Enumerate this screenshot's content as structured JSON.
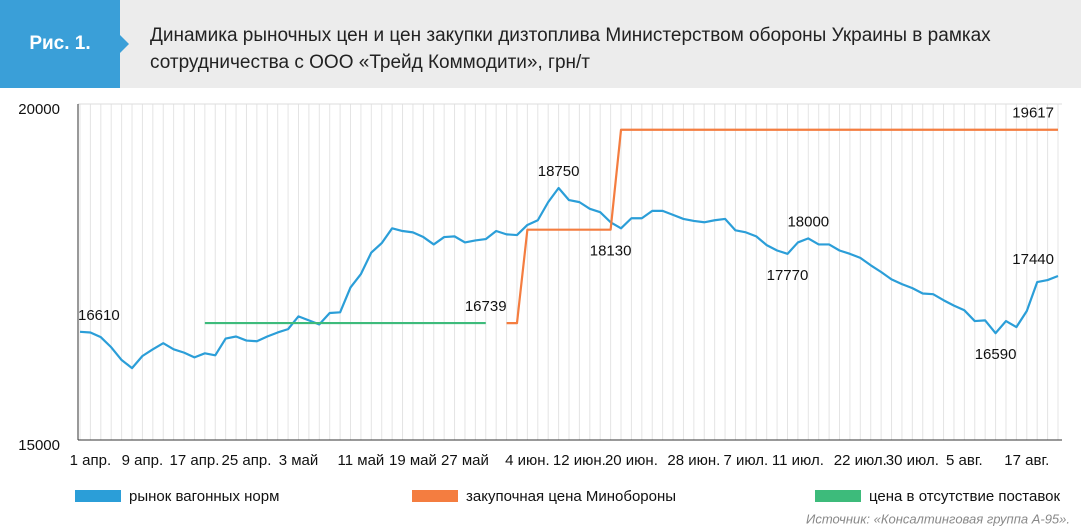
{
  "chart_data": {
    "type": "line",
    "figure_label": "Рис. 1.",
    "title": "Динамика рыночных цен и цен закупки дизтоплива Министерством обороны Украины в рамках сотрудничества с ООО «Трейд Коммодити», грн/т",
    "source": "Источник: «Консалтинговая группа А-95».",
    "ylim": [
      15000,
      20000
    ],
    "yticks": [
      15000,
      20000
    ],
    "grid": true,
    "categories": [
      null,
      "1 апр.",
      null,
      null,
      null,
      null,
      "9 апр.",
      null,
      null,
      null,
      null,
      "17 апр.",
      null,
      null,
      null,
      null,
      "25 апр.",
      null,
      null,
      null,
      null,
      "3 май",
      null,
      null,
      null,
      null,
      null,
      "11 май",
      null,
      null,
      null,
      null,
      "19 май",
      null,
      null,
      null,
      null,
      "27 май",
      null,
      null,
      null,
      null,
      null,
      "4 июн.",
      null,
      null,
      null,
      null,
      "12 июн.",
      null,
      null,
      null,
      null,
      "20 июн.",
      null,
      null,
      null,
      null,
      null,
      "28 июн.",
      null,
      null,
      null,
      null,
      "7 июл.",
      null,
      null,
      null,
      null,
      "11 июл.",
      null,
      null,
      null,
      null,
      null,
      "22 июл.",
      null,
      null,
      null,
      null,
      "30 июл.",
      null,
      null,
      null,
      null,
      "5 авг.",
      null,
      null,
      null,
      null,
      null,
      "17 авг.",
      null,
      null,
      null
    ],
    "series": [
      {
        "name": "рынок вагонных норм",
        "color": "#2b9ed8",
        "values": [
          16610,
          16600,
          16530,
          16380,
          16190,
          16070,
          16250,
          16350,
          16440,
          16350,
          16300,
          16230,
          16290,
          16260,
          16510,
          16540,
          16480,
          16470,
          16540,
          16600,
          16650,
          16840,
          16780,
          16720,
          16890,
          16900,
          17270,
          17470,
          17790,
          17930,
          18150,
          18110,
          18090,
          18020,
          17910,
          18020,
          18030,
          17940,
          17970,
          17990,
          18110,
          18060,
          18050,
          18200,
          18270,
          18540,
          18750,
          18570,
          18540,
          18440,
          18390,
          18240,
          18150,
          18300,
          18300,
          18410,
          18410,
          18350,
          18290,
          18260,
          18240,
          18270,
          18290,
          18120,
          18090,
          18030,
          17900,
          17820,
          17770,
          17940,
          18000,
          17910,
          17910,
          17820,
          17770,
          17710,
          17600,
          17500,
          17390,
          17320,
          17260,
          17180,
          17170,
          17080,
          17000,
          16930,
          16770,
          16780,
          16590,
          16770,
          16680,
          16920,
          17350,
          17380,
          17440
        ],
        "value_labels": [
          "16610",
          null,
          null,
          null,
          null,
          null,
          null,
          null,
          null,
          null,
          null,
          null,
          null,
          null,
          null,
          null,
          null,
          null,
          null,
          null,
          null,
          null,
          null,
          null,
          null,
          null,
          null,
          null,
          null,
          null,
          null,
          null,
          null,
          null,
          null,
          null,
          null,
          null,
          null,
          null,
          null,
          null,
          null,
          null,
          null,
          null,
          "18750",
          null,
          null,
          null,
          null,
          null,
          null,
          null,
          null,
          null,
          null,
          null,
          null,
          null,
          null,
          null,
          null,
          null,
          null,
          null,
          null,
          null,
          "17770",
          null,
          "18000",
          null,
          null,
          null,
          null,
          null,
          null,
          null,
          null,
          null,
          null,
          null,
          null,
          null,
          null,
          null,
          null,
          null,
          "16590",
          null,
          null,
          null,
          null,
          null,
          "17440"
        ]
      },
      {
        "name": "закупочная цена Минобороны",
        "color": "#f47d40",
        "values": [
          null,
          null,
          null,
          null,
          null,
          null,
          null,
          null,
          null,
          null,
          null,
          null,
          null,
          null,
          null,
          null,
          null,
          null,
          null,
          null,
          null,
          null,
          null,
          null,
          null,
          null,
          null,
          null,
          null,
          null,
          null,
          null,
          null,
          null,
          null,
          null,
          null,
          null,
          null,
          null,
          null,
          16739,
          16739,
          18130,
          18130,
          18130,
          18130,
          18130,
          18130,
          18130,
          18130,
          18130,
          19617,
          19617,
          19617,
          19617,
          19617,
          19617,
          19617,
          19617,
          19617,
          19617,
          19617,
          19617,
          19617,
          19617,
          19617,
          19617,
          19617,
          19617,
          19617,
          19617,
          19617,
          19617,
          19617,
          19617,
          19617,
          19617,
          19617,
          19617,
          19617,
          19617,
          19617,
          19617,
          19617,
          19617,
          19617,
          19617,
          19617,
          19617,
          19617,
          19617,
          19617,
          19617,
          19617
        ],
        "value_labels": [
          null,
          null,
          null,
          null,
          null,
          null,
          null,
          null,
          null,
          null,
          null,
          null,
          null,
          null,
          null,
          null,
          null,
          null,
          null,
          null,
          null,
          null,
          null,
          null,
          null,
          null,
          null,
          null,
          null,
          null,
          null,
          null,
          null,
          null,
          null,
          null,
          null,
          null,
          null,
          null,
          null,
          "16739",
          null,
          null,
          null,
          null,
          null,
          null,
          null,
          null,
          null,
          "18130",
          null,
          null,
          null,
          null,
          null,
          null,
          null,
          null,
          null,
          null,
          null,
          null,
          null,
          null,
          null,
          null,
          null,
          null,
          null,
          null,
          null,
          null,
          null,
          null,
          null,
          null,
          null,
          null,
          null,
          null,
          null,
          null,
          null,
          null,
          null,
          null,
          null,
          null,
          null,
          null,
          null,
          null,
          "19617"
        ]
      },
      {
        "name": "цена в отсутствие поставок",
        "color": "#3dbb7b",
        "values": [
          null,
          null,
          null,
          null,
          null,
          null,
          null,
          null,
          null,
          null,
          null,
          null,
          16740,
          16740,
          16740,
          16740,
          16740,
          16740,
          16740,
          16740,
          16740,
          16740,
          16740,
          16740,
          16740,
          16740,
          16740,
          16740,
          16740,
          16740,
          16740,
          16740,
          16740,
          16740,
          16740,
          16740,
          16740,
          16740,
          16740,
          16740,
          null,
          null,
          null,
          null,
          null,
          null,
          null,
          null,
          null,
          null,
          null,
          null,
          null,
          null,
          null,
          null,
          null,
          null,
          null,
          null,
          null,
          null,
          null,
          null,
          null,
          null,
          null,
          null,
          null,
          null,
          null,
          null,
          null,
          null,
          null,
          null,
          null,
          null,
          null,
          null,
          null,
          null,
          null,
          null,
          null,
          null,
          null,
          null,
          null,
          null,
          null,
          null,
          null,
          null,
          null
        ]
      }
    ]
  }
}
